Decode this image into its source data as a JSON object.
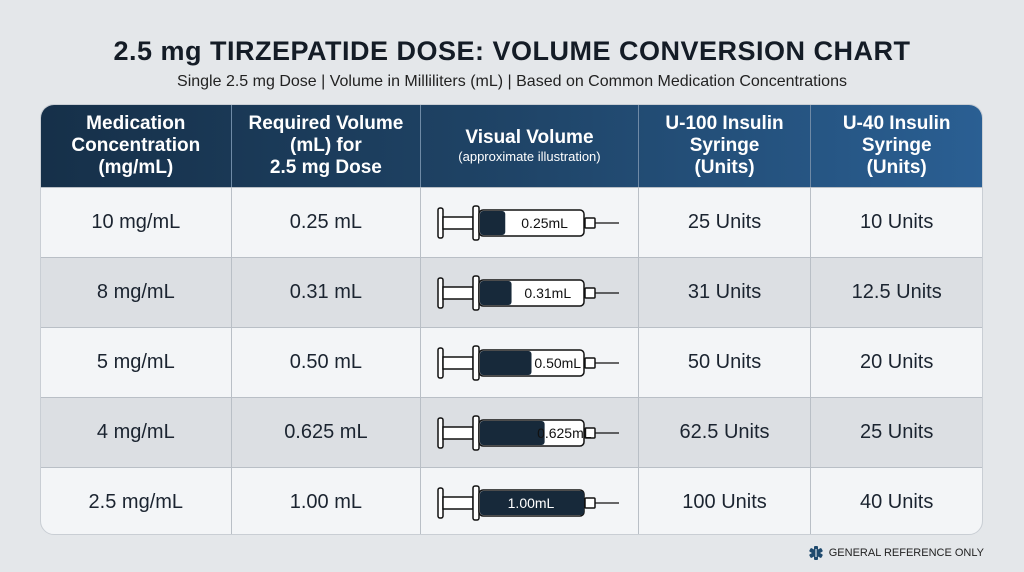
{
  "title": "2.5 mg TIRZEPATIDE DOSE: VOLUME CONVERSION CHART",
  "subtitle": "Single 2.5 mg Dose | Volume in Milliliters (mL) | Based on Common Medication Concentrations",
  "footer": "GENERAL REFERENCE ONLY",
  "colors": {
    "header_dark": "#163049",
    "header_light": "#2a5f93",
    "syringe_fill": "#17293a"
  },
  "chart_data": {
    "type": "table",
    "columns": [
      {
        "label": "Medication Concentration (mg/mL)",
        "lines": [
          "Medication",
          "Concentration",
          "(mg/mL)"
        ]
      },
      {
        "label": "Required Volume (mL) for 2.5 mg Dose",
        "lines": [
          "Required Volume",
          "(mL) for",
          "2.5 mg Dose"
        ]
      },
      {
        "label": "Visual Volume",
        "note": "(approximate illustration)"
      },
      {
        "label": "U-100 Insulin Syringe (Units)",
        "lines": [
          "U-100 Insulin",
          "Syringe",
          "(Units)"
        ]
      },
      {
        "label": "U-40 Insulin Syringe (Units)",
        "lines": [
          "U-40 Insulin",
          "Syringe",
          "(Units)"
        ]
      }
    ],
    "rows": [
      {
        "concentration": "10 mg/mL",
        "volume": "0.25 mL",
        "visual": "0.25mL",
        "fill": 0.25,
        "u100": "25 Units",
        "u40": "10 Units"
      },
      {
        "concentration": "8 mg/mL",
        "volume": "0.31 mL",
        "visual": "0.31mL",
        "fill": 0.31,
        "u100": "31 Units",
        "u40": "12.5 Units"
      },
      {
        "concentration": "5 mg/mL",
        "volume": "0.50 mL",
        "visual": "0.50mL",
        "fill": 0.5,
        "u100": "50 Units",
        "u40": "20 Units"
      },
      {
        "concentration": "4 mg/mL",
        "volume": "0.625 mL",
        "visual": "0.625mL",
        "fill": 0.625,
        "u100": "62.5 Units",
        "u40": "25 Units"
      },
      {
        "concentration": "2.5 mg/mL",
        "volume": "1.00 mL",
        "visual": "1.00mL",
        "fill": 1.0,
        "u100": "100 Units",
        "u40": "40 Units"
      }
    ]
  }
}
